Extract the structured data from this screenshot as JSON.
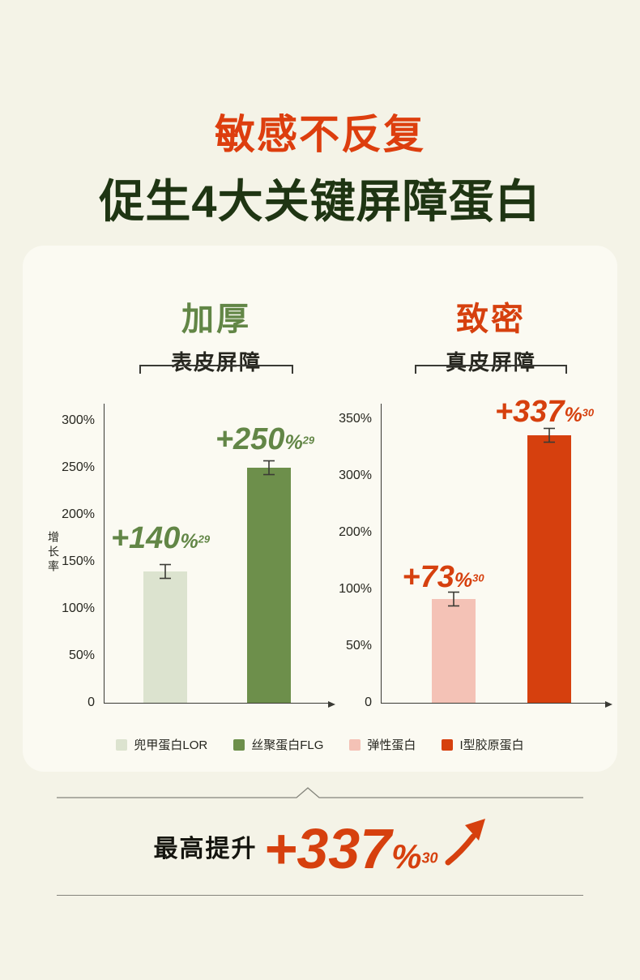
{
  "header": {
    "title_accent": "敏感不反复",
    "title_main": "促生4大关键屏障蛋白"
  },
  "card": {
    "left": {
      "heading": "加厚",
      "subheading": "表皮屏障",
      "ylabel": "增长率",
      "yticks": [
        "300%",
        "250%",
        "200%",
        "150%",
        "100%",
        "50%",
        "0"
      ],
      "bars": [
        {
          "value": "+140",
          "pct": "%",
          "sup": "29"
        },
        {
          "value": "+250",
          "pct": "%",
          "sup": "29"
        }
      ]
    },
    "right": {
      "heading": "致密",
      "subheading": "真皮屏障",
      "yticks": [
        "350%",
        "300%",
        "200%",
        "100%",
        "50%",
        "0"
      ],
      "bars": [
        {
          "value": "+73",
          "pct": "%",
          "sup": "30"
        },
        {
          "value": "+337",
          "pct": "%",
          "sup": "30"
        }
      ]
    },
    "legend": [
      {
        "label": "兜甲蛋白LOR",
        "color": "#dce3cf"
      },
      {
        "label": "丝聚蛋白FLG",
        "color": "#6d8f4b"
      },
      {
        "label": "弹性蛋白",
        "color": "#f4c2b6"
      },
      {
        "label": "I型胶原蛋白",
        "color": "#d6400e"
      }
    ]
  },
  "footer": {
    "prefix": "最高提升",
    "value": "+337",
    "pct": "%",
    "sup": "30"
  },
  "colors": {
    "background": "#f4f3e7",
    "card": "#fbfaf2",
    "accent_orange": "#dd3e0e",
    "dark_green_title": "#1f3513",
    "mid_green": "#628646",
    "bar_light_green": "#dce3cf",
    "bar_dark_green": "#6d8f4b",
    "bar_pink": "#f4c2b6",
    "bar_red": "#d6400e",
    "axis": "#3a3a35",
    "text_dark": "#26261f"
  },
  "chart_data": [
    {
      "type": "bar",
      "title": "加厚 表皮屏障",
      "ylabel": "增长率",
      "categories": [
        "兜甲蛋白LOR",
        "丝聚蛋白FLG"
      ],
      "values": [
        140,
        250
      ],
      "value_labels": [
        "+140%",
        "+250%"
      ],
      "footnote_refs": [
        "29",
        "29"
      ],
      "yticks": [
        0,
        50,
        100,
        150,
        200,
        250,
        300
      ],
      "ytick_labels": [
        "0",
        "50%",
        "100%",
        "150%",
        "200%",
        "250%",
        "300%"
      ],
      "ylim": [
        0,
        320
      ],
      "colors": [
        "#dce3cf",
        "#6d8f4b"
      ],
      "error_bars": true,
      "grid": false,
      "legend_position": "bottom"
    },
    {
      "type": "bar",
      "title": "致密 真皮屏障",
      "ylabel": "",
      "categories": [
        "弹性蛋白",
        "I型胶原蛋白"
      ],
      "values": [
        73,
        337
      ],
      "value_labels": [
        "+73%",
        "+337%"
      ],
      "footnote_refs": [
        "30",
        "30"
      ],
      "yticks": [
        0,
        50,
        100,
        200,
        300,
        350
      ],
      "ytick_labels": [
        "0",
        "50%",
        "100%",
        "200%",
        "300%",
        "350%"
      ],
      "ylim": [
        0,
        360
      ],
      "colors": [
        "#f4c2b6",
        "#d6400e"
      ],
      "error_bars": true,
      "grid": false,
      "legend_position": "bottom"
    }
  ]
}
